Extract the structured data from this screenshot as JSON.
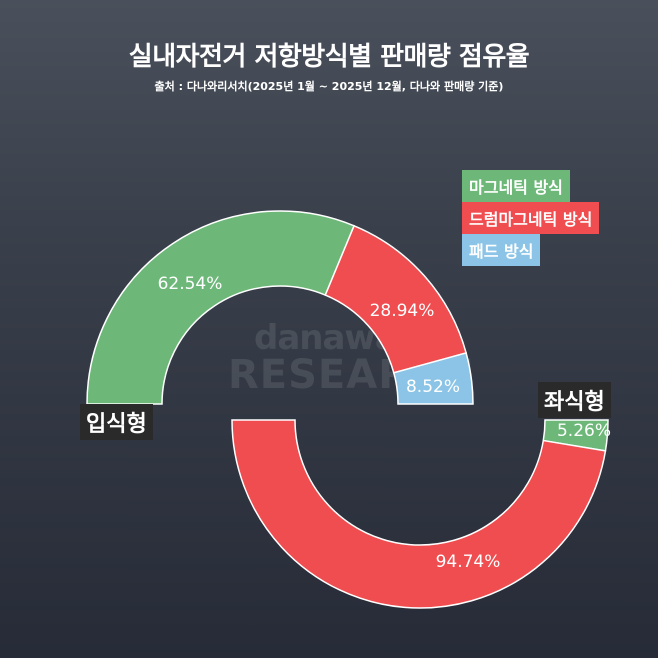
{
  "title": "실내자전거 저항방식별 판매량 점유율",
  "source": "출처 : 다나와리서치(2025년 1월 ~ 2025년 12월, 다나와 판매량 기준)",
  "watermark": {
    "line1": "danawa",
    "line2": "RESEARCH"
  },
  "colors": {
    "magnetic": "#6db879",
    "drum_magnetic": "#ef4d50",
    "pad": "#8bc4e6"
  },
  "chart_data": [
    {
      "type": "pie",
      "title": "입식형",
      "categories": [
        "마그네틱 방식",
        "드럼마그네틱 방식",
        "패드 방식"
      ],
      "values": [
        62.54,
        28.94,
        8.52
      ],
      "labels": [
        "62.54%",
        "28.94%",
        "8.52%"
      ]
    },
    {
      "type": "pie",
      "title": "좌식형",
      "categories": [
        "마그네틱 방식",
        "드럼마그네틱 방식"
      ],
      "values": [
        5.26,
        94.74
      ],
      "labels": [
        "5.26%",
        "94.74%"
      ]
    }
  ],
  "legend": [
    "마그네틱 방식",
    "드럼마그네틱 방식",
    "패드 방식"
  ]
}
